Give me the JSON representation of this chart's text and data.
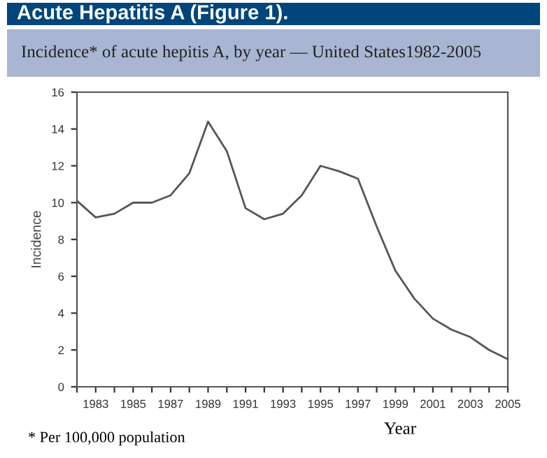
{
  "chart_data": {
    "type": "line",
    "title": "Acute Hepatitis A (Figure 1).",
    "subtitle": "Incidence* of acute hepitis A, by year — United States1982-2005",
    "xlabel": "Year",
    "ylabel": "Incidence",
    "x": [
      1982,
      1983,
      1984,
      1985,
      1986,
      1987,
      1988,
      1989,
      1990,
      1991,
      1992,
      1993,
      1994,
      1995,
      1996,
      1997,
      1998,
      1999,
      2000,
      2001,
      2002,
      2003,
      2004,
      2005
    ],
    "series": [
      {
        "color": "#555555",
        "values": [
          10.1,
          9.2,
          9.4,
          10.0,
          10.0,
          10.4,
          11.6,
          14.4,
          12.8,
          9.7,
          9.1,
          9.4,
          10.4,
          12.0,
          11.7,
          11.3,
          8.7,
          6.3,
          4.8,
          3.7,
          3.1,
          2.7,
          2.0,
          1.5
        ]
      }
    ],
    "xlim": [
      1982,
      2005
    ],
    "xticks": [
      {
        "value": 1982,
        "label": null
      },
      1983,
      {
        "value": 1984,
        "label": null
      },
      1985,
      {
        "value": 1986,
        "label": null
      },
      1987,
      {
        "value": 1988,
        "label": null
      },
      1989,
      {
        "value": 1990,
        "label": null
      },
      1991,
      {
        "value": 1992,
        "label": null
      },
      1993,
      {
        "value": 1994,
        "label": null
      },
      1995,
      {
        "value": 1996,
        "label": null
      },
      1997,
      {
        "value": 1998,
        "label": null
      },
      1999,
      {
        "value": 2000,
        "label": null
      },
      2001,
      {
        "value": 2002,
        "label": null
      },
      2003,
      {
        "value": 2004,
        "label": null
      },
      2005
    ],
    "ylim": [
      0,
      16
    ],
    "yticks": [
      0,
      2,
      4,
      6,
      8,
      10,
      12,
      14,
      16
    ],
    "grid": false,
    "marker": "none",
    "line_style": "solid",
    "annotations": [
      "* Per 100,000 population"
    ]
  }
}
